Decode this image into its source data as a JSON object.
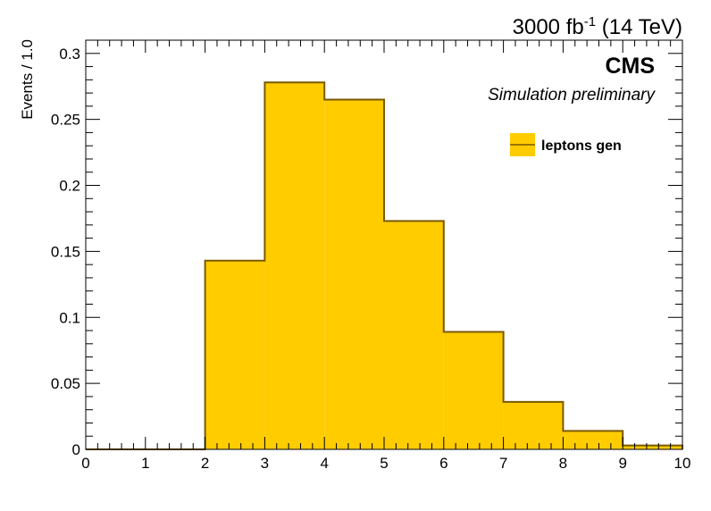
{
  "chart_data": {
    "type": "bar",
    "style": "step-histogram",
    "lumi_main": "3000 fb",
    "lumi_sup": "-1",
    "lumi_energy": " (14 TeV)",
    "experiment": "CMS",
    "status": "Simulation preliminary",
    "ylabel": "Events / 1.0",
    "xlabel": "",
    "xlim": [
      0,
      10
    ],
    "ylim": [
      0,
      0.31
    ],
    "x_ticks": [
      "0",
      "1",
      "2",
      "3",
      "4",
      "5",
      "6",
      "7",
      "8",
      "9",
      "10"
    ],
    "y_ticks": [
      {
        "value": 0,
        "label": "0"
      },
      {
        "value": 0.05,
        "label": "0.05"
      },
      {
        "value": 0.1,
        "label": "0.1"
      },
      {
        "value": 0.15,
        "label": "0.15"
      },
      {
        "value": 0.2,
        "label": "0.2"
      },
      {
        "value": 0.25,
        "label": "0.25"
      },
      {
        "value": 0.3,
        "label": "0.3"
      }
    ],
    "bin_edges": [
      0,
      1,
      2,
      3,
      4,
      5,
      6,
      7,
      8,
      9,
      10
    ],
    "series": [
      {
        "name": "leptons gen",
        "values": [
          0,
          0,
          0.143,
          0.278,
          0.265,
          0.173,
          0.089,
          0.036,
          0.014,
          0.003
        ]
      }
    ],
    "fill_color": "#ffcc00",
    "line_color": "#7a5a00",
    "legend_position": "top-right",
    "grid": false
  }
}
